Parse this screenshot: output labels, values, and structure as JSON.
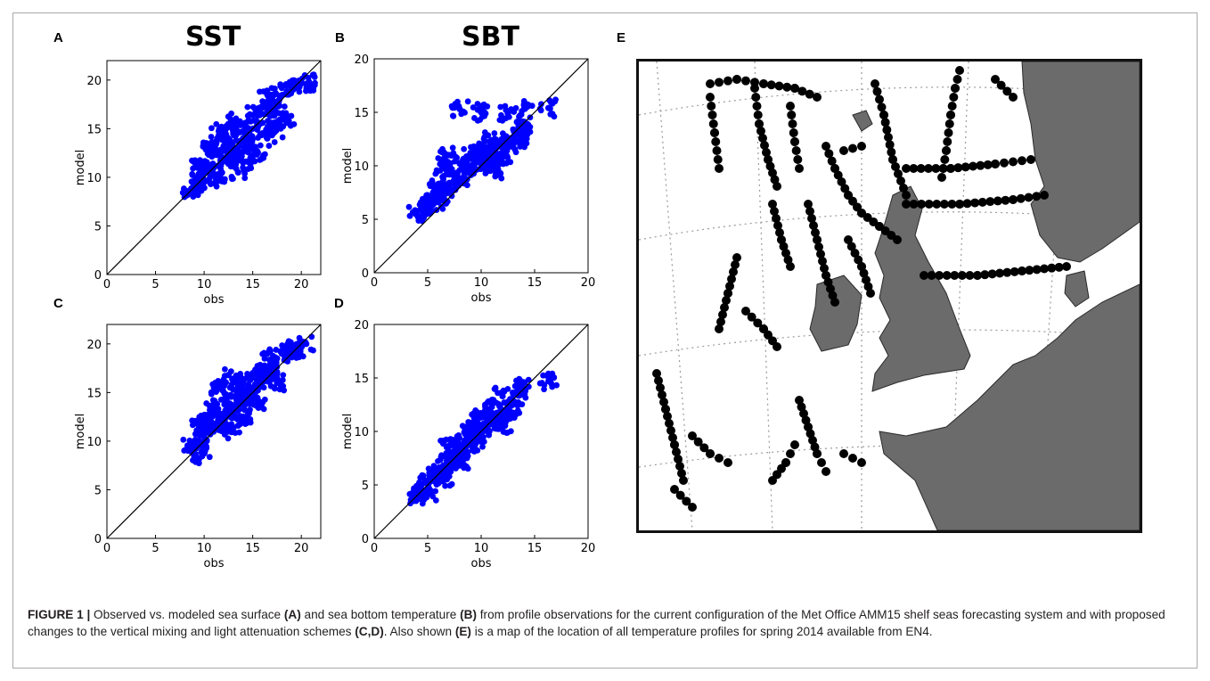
{
  "panel_labels": {
    "a": "A",
    "b": "B",
    "c": "C",
    "d": "D",
    "e": "E"
  },
  "titles": {
    "sst": "SST",
    "sbt": "SBT"
  },
  "caption": {
    "figure_label": "FIGURE 1 |",
    "t1": " Observed vs. modeled sea surface ",
    "r1": "(A)",
    "t2": " and sea bottom temperature ",
    "r2": "(B)",
    "t3": " from profile observations for the current configuration of the Met Office AMM15 shelf seas forecasting system and with proposed changes to the vertical mixing and light attenuation schemes ",
    "r3": "(C,D)",
    "t4": ". Also shown ",
    "r4": "(E)",
    "t5": " is a map of the location of all temperature profiles for spring 2014 available from EN4."
  },
  "colors": {
    "points": "#0000ff",
    "land": "#6b6b6b",
    "obs_dots": "#000000"
  },
  "chart_data": [
    {
      "id": "A",
      "type": "scatter",
      "title": "SST",
      "xlabel": "obs",
      "ylabel": "model",
      "xlim": [
        0,
        22
      ],
      "ylim": [
        0,
        22
      ],
      "xticks": [
        0,
        5,
        10,
        15,
        20
      ],
      "yticks": [
        0,
        5,
        10,
        15,
        20
      ],
      "reference_line": "y = x",
      "cloud": {
        "x_range": [
          8.5,
          21
        ],
        "y_range": [
          8.5,
          20
        ],
        "center": [
          12.5,
          12.5
        ],
        "description_count": "dense"
      },
      "points": [
        [
          8.6,
          8.7
        ],
        [
          9,
          9.5
        ],
        [
          9.5,
          9.2
        ],
        [
          10,
          10.5
        ],
        [
          10.2,
          11.5
        ],
        [
          10.5,
          9.8
        ],
        [
          11,
          11
        ],
        [
          11,
          12.5
        ],
        [
          11.5,
          10.3
        ],
        [
          12,
          12
        ],
        [
          12,
          13.2
        ],
        [
          12.5,
          11.4
        ],
        [
          13,
          13
        ],
        [
          13,
          14.5
        ],
        [
          13.5,
          12.3
        ],
        [
          14,
          14
        ],
        [
          14.2,
          15.4
        ],
        [
          14.8,
          13.3
        ],
        [
          15,
          15
        ],
        [
          15.2,
          16.5
        ],
        [
          16,
          15.6
        ],
        [
          16,
          17.2
        ],
        [
          16.8,
          16.3
        ],
        [
          17,
          18
        ],
        [
          17.5,
          17.3
        ],
        [
          18.5,
          18.8
        ],
        [
          19,
          19.2
        ],
        [
          19.8,
          19.3
        ],
        [
          20.5,
          19.6
        ],
        [
          20.8,
          19.8
        ],
        [
          13.5,
          10.5
        ],
        [
          12,
          14.8
        ],
        [
          15.5,
          12.5
        ],
        [
          11.5,
          14.3
        ],
        [
          9.5,
          11
        ],
        [
          10.8,
          13.6
        ],
        [
          13,
          15.8
        ],
        [
          14.5,
          11.6
        ],
        [
          16.5,
          14
        ],
        [
          17.4,
          14.8
        ],
        [
          18,
          16.5
        ],
        [
          18.5,
          15.6
        ],
        [
          10.5,
          12.8
        ],
        [
          16.5,
          18.5
        ]
      ]
    },
    {
      "id": "B",
      "type": "scatter",
      "xlabel": "obs",
      "ylabel": "model",
      "xlim": [
        0,
        20
      ],
      "ylim": [
        0,
        20
      ],
      "xticks": [
        0,
        5,
        10,
        15,
        20
      ],
      "yticks": [
        0,
        5,
        10,
        15,
        20
      ],
      "reference_line": "y = x",
      "points": [
        [
          4,
          5.4
        ],
        [
          4.5,
          5.8
        ],
        [
          5,
          6.2
        ],
        [
          5.5,
          7.5
        ],
        [
          6,
          6.6
        ],
        [
          6,
          8.3
        ],
        [
          6.5,
          7.2
        ],
        [
          7,
          8
        ],
        [
          7,
          9.2
        ],
        [
          7.5,
          8.3
        ],
        [
          8,
          8.8
        ],
        [
          8,
          10.2
        ],
        [
          8.5,
          9.3
        ],
        [
          9,
          10
        ],
        [
          9,
          11.2
        ],
        [
          9.5,
          10.5
        ],
        [
          10,
          9.8
        ],
        [
          10,
          11.5
        ],
        [
          10.5,
          10.2
        ],
        [
          11,
          11.5
        ],
        [
          11,
          12.4
        ],
        [
          11.5,
          10.8
        ],
        [
          12,
          12.5
        ],
        [
          12,
          11
        ],
        [
          12.5,
          11.8
        ],
        [
          13,
          12.7
        ],
        [
          13.5,
          12.3
        ],
        [
          13.8,
          13.2
        ],
        [
          14,
          13.6
        ],
        [
          16.3,
          15.4
        ],
        [
          8,
          15.3
        ],
        [
          10,
          15
        ],
        [
          12.5,
          14.9
        ],
        [
          14,
          15.3
        ],
        [
          6.5,
          10
        ],
        [
          7,
          11
        ],
        [
          11.5,
          9.6
        ]
      ]
    },
    {
      "id": "C",
      "type": "scatter",
      "xlabel": "obs",
      "ylabel": "model",
      "xlim": [
        0,
        22
      ],
      "ylim": [
        0,
        22
      ],
      "xticks": [
        0,
        5,
        10,
        15,
        20
      ],
      "yticks": [
        0,
        5,
        10,
        15,
        20
      ],
      "reference_line": "y = x",
      "points": [
        [
          8.5,
          9.6
        ],
        [
          9,
          8.4
        ],
        [
          9.5,
          10
        ],
        [
          10,
          10.5
        ],
        [
          10,
          12
        ],
        [
          10.5,
          11
        ],
        [
          11,
          11.3
        ],
        [
          11,
          13.5
        ],
        [
          11.5,
          12.2
        ],
        [
          12,
          12
        ],
        [
          12,
          14.3
        ],
        [
          12.5,
          13
        ],
        [
          13,
          13.2
        ],
        [
          13,
          15.3
        ],
        [
          13.5,
          14
        ],
        [
          14,
          14.3
        ],
        [
          14,
          16.3
        ],
        [
          14.5,
          15
        ],
        [
          15,
          15.2
        ],
        [
          15,
          17
        ],
        [
          15.5,
          16
        ],
        [
          16,
          16.5
        ],
        [
          16.5,
          17.5
        ],
        [
          17,
          17.3
        ],
        [
          17.5,
          18.5
        ],
        [
          18,
          19
        ],
        [
          18.5,
          19.5
        ],
        [
          19.5,
          19.5
        ],
        [
          20.5,
          20
        ],
        [
          13.5,
          11.6
        ],
        [
          12.5,
          11
        ],
        [
          15.5,
          14
        ],
        [
          10,
          9
        ],
        [
          16.5,
          19
        ],
        [
          12.5,
          16.8
        ],
        [
          11.5,
          15.6
        ],
        [
          14,
          12.5
        ],
        [
          17.5,
          16
        ],
        [
          9.5,
          11.5
        ],
        [
          19,
          18.8
        ]
      ]
    },
    {
      "id": "D",
      "type": "scatter",
      "xlabel": "obs",
      "ylabel": "model",
      "xlim": [
        0,
        20
      ],
      "ylim": [
        0,
        20
      ],
      "xticks": [
        0,
        5,
        10,
        15,
        20
      ],
      "yticks": [
        0,
        5,
        10,
        15,
        20
      ],
      "reference_line": "y = x",
      "points": [
        [
          4,
          4
        ],
        [
          4.5,
          4.5
        ],
        [
          5,
          5.2
        ],
        [
          5,
          4.3
        ],
        [
          5.5,
          5.8
        ],
        [
          6,
          6
        ],
        [
          6.5,
          6.8
        ],
        [
          6.5,
          5.7
        ],
        [
          7,
          7.4
        ],
        [
          7.5,
          7.5
        ],
        [
          8,
          8.2
        ],
        [
          8,
          7.2
        ],
        [
          8.5,
          9
        ],
        [
          9,
          8.8
        ],
        [
          9,
          9.8
        ],
        [
          9.5,
          9.3
        ],
        [
          10,
          10.2
        ],
        [
          10,
          11.3
        ],
        [
          10.5,
          10.3
        ],
        [
          11,
          11
        ],
        [
          11,
          12.3
        ],
        [
          11.5,
          11.2
        ],
        [
          12,
          12
        ],
        [
          12,
          13.3
        ],
        [
          12.5,
          11.8
        ],
        [
          13,
          13.5
        ],
        [
          13.5,
          12.5
        ],
        [
          13.8,
          14.3
        ],
        [
          16.3,
          14.7
        ],
        [
          7,
          8.6
        ],
        [
          8.5,
          10.2
        ],
        [
          9.5,
          11
        ],
        [
          12,
          10.6
        ]
      ]
    }
  ],
  "map": {
    "type": "observation_location_map",
    "region": "North-West European shelf",
    "description_elements": [
      "land (grey)",
      "dotted graticule",
      "black profile location dots"
    ]
  }
}
